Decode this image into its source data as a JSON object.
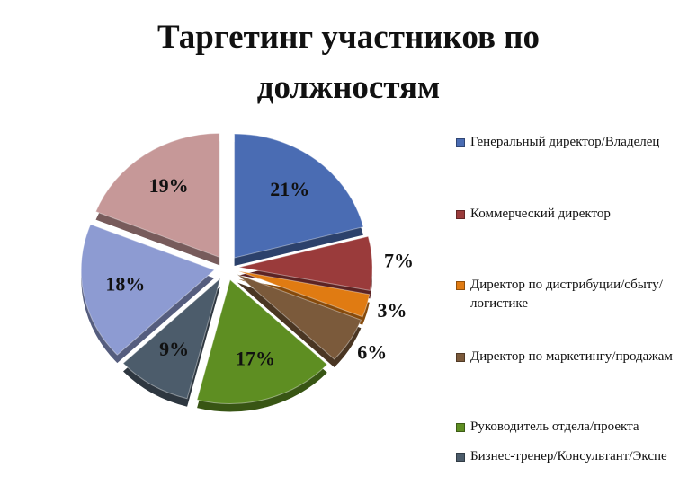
{
  "chart_data": {
    "type": "pie",
    "title": "Таргетинг участников по должностям",
    "categories": [
      "Генеральный директор/Владелец",
      "Коммерческий директор",
      "Директор по дистрибуции/сбыту/логистике",
      "Директор по маркетингу/продажам",
      "Руководитель отдела/проекта",
      "Бизнес-тренер/Консультант/Экспе",
      null,
      null
    ],
    "values": [
      21,
      7,
      3,
      6,
      17,
      9,
      18,
      19
    ],
    "value_labels": [
      "21%",
      "7%",
      "3%",
      "6%",
      "17%",
      "9%",
      "18%",
      "19%"
    ],
    "colors": [
      "#4a6cb3",
      "#9a3b3b",
      "#e07b12",
      "#7b5a3b",
      "#5e8e22",
      "#4c5c6b",
      "#8d9bd2",
      "#c69898"
    ],
    "legend": "right"
  }
}
